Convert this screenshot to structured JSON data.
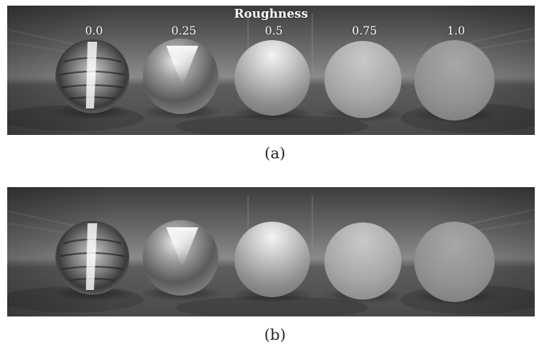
{
  "figure": {
    "title": "Roughness",
    "roughness_values": [
      "0.0",
      "0.25",
      "0.5",
      "0.75",
      "1.0"
    ],
    "captions": {
      "a": "(a)",
      "b": "(b)"
    }
  }
}
